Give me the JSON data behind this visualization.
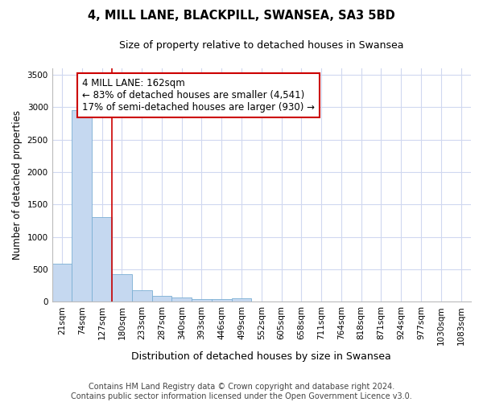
{
  "title1": "4, MILL LANE, BLACKPILL, SWANSEA, SA3 5BD",
  "title2": "Size of property relative to detached houses in Swansea",
  "xlabel": "Distribution of detached houses by size in Swansea",
  "ylabel": "Number of detached properties",
  "categories": [
    "21sqm",
    "74sqm",
    "127sqm",
    "180sqm",
    "233sqm",
    "287sqm",
    "340sqm",
    "393sqm",
    "446sqm",
    "499sqm",
    "552sqm",
    "605sqm",
    "658sqm",
    "711sqm",
    "764sqm",
    "818sqm",
    "871sqm",
    "924sqm",
    "977sqm",
    "1030sqm",
    "1083sqm"
  ],
  "values": [
    580,
    2950,
    1300,
    420,
    170,
    90,
    60,
    40,
    40,
    50,
    0,
    0,
    0,
    0,
    0,
    0,
    0,
    0,
    0,
    0,
    0
  ],
  "bar_color": "#c5d8f0",
  "bar_edge_color": "#7bafd4",
  "vline_x": 2.5,
  "vline_color": "#cc0000",
  "annotation_text": "4 MILL LANE: 162sqm\n← 83% of detached houses are smaller (4,541)\n17% of semi-detached houses are larger (930) →",
  "box_edge_color": "#cc0000",
  "box_face_color": "white",
  "ylim": [
    0,
    3600
  ],
  "yticks": [
    0,
    500,
    1000,
    1500,
    2000,
    2500,
    3000,
    3500
  ],
  "background_color": "white",
  "grid_color": "#d0d8f0",
  "footnote": "Contains HM Land Registry data © Crown copyright and database right 2024.\nContains public sector information licensed under the Open Government Licence v3.0.",
  "title1_fontsize": 10.5,
  "title2_fontsize": 9,
  "xlabel_fontsize": 9,
  "ylabel_fontsize": 8.5,
  "tick_fontsize": 7.5,
  "footnote_fontsize": 7,
  "annotation_fontsize": 8.5
}
